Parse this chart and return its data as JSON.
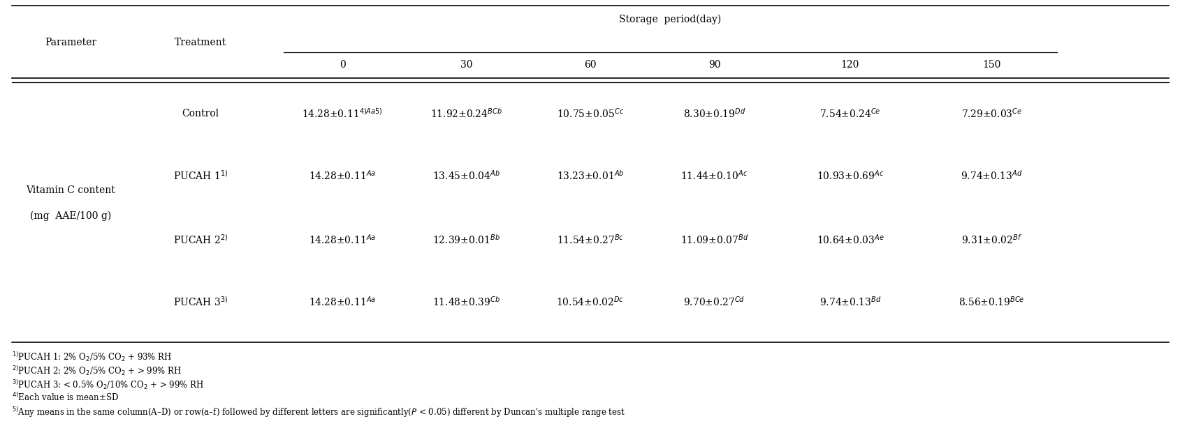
{
  "storage_header": "Storage  period(day)",
  "param_label_line1": "Vitamin C content",
  "param_label_line2": "(mg  AAE/100 g)",
  "parameter_text": "Parameter",
  "treatment_text": "Treatment",
  "col_headers": [
    "0",
    "30",
    "60",
    "90",
    "120",
    "150"
  ],
  "row_labels": [
    "Control",
    "PUCAH 1$^{1)}$",
    "PUCAH 2$^{2)}$",
    "PUCAH 3$^{3)}$"
  ],
  "data": [
    [
      "14.28±0.11$^{4)Aa5)}$",
      "11.92±0.24$^{BCb}$",
      "10.75±0.05$^{Cc}$",
      "8.30±0.19$^{Dd}$",
      "7.54±0.24$^{Ce}$",
      "7.29±0.03$^{Ce}$"
    ],
    [
      "14.28±0.11$^{Aa}$",
      "13.45±0.04$^{Ab}$",
      "13.23±0.01$^{Ab}$",
      "11.44±0.10$^{Ac}$",
      "10.93±0.69$^{Ac}$",
      "9.74±0.13$^{Ad}$"
    ],
    [
      "14.28±0.11$^{Aa}$",
      "12.39±0.01$^{Bb}$",
      "11.54±0.27$^{Bc}$",
      "11.09±0.07$^{Bd}$",
      "10.64±0.03$^{Ae}$",
      "9.31±0.02$^{Bf}$"
    ],
    [
      "14.28±0.11$^{Aa}$",
      "11.48±0.39$^{Cb}$",
      "10.54±0.02$^{Dc}$",
      "9.70±0.27$^{Cd}$",
      "9.74±0.13$^{Bd}$",
      "8.56±0.19$^{BCe}$"
    ]
  ],
  "footnotes": [
    "$^{1)}$PUCAH 1: 2% O$_2$/5% CO$_2$ + 93% RH",
    "$^{2)}$PUCAH 2: 2% O$_2$/5% CO$_2$ + > 99% RH",
    "$^{3)}$PUCAH 3: < 0.5% O$_2$/10% CO$_2$ + > 99% RH",
    "$^{4)}$Each value is mean±SD",
    "$^{5)}$Any means in the same column(A–D) or row(a–f) followed by different letters are significantly($P$ < 0.05) different by Duncan's multiple range test"
  ],
  "bg_color": "#ffffff",
  "text_color": "#000000",
  "font_size": 10.0,
  "footnote_font_size": 8.5
}
